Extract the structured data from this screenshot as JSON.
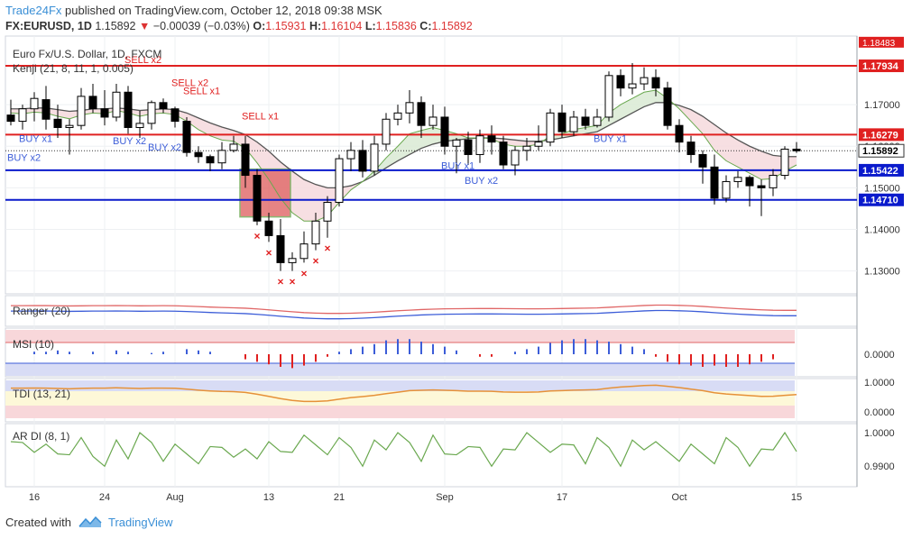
{
  "header": {
    "brand": "Trade24Fx",
    "published": "published on TradingView.com, October 12, 2018 09:38 MSK",
    "symbol": "FX:EURUSD, 1D",
    "last": "1.15892",
    "change": "−0.00039 (−0.03%)",
    "o_label": "O:",
    "o": "1.15931",
    "h_label": "H:",
    "h": "1.16104",
    "l_label": "L:",
    "l": "1.15836",
    "c_label": "C:",
    "c": "1.15892"
  },
  "footer": {
    "created": "Created with",
    "tv": "TradingView"
  },
  "colors": {
    "bull": "#ffffff",
    "bear": "#000000",
    "red_line": "#e02020",
    "blue_line": "#0a1acc",
    "accent": "#3a8fd6"
  },
  "chart_data": {
    "type": "candlestick",
    "title": "Euro Fx/U.S. Dollar, 1D, FXCM",
    "indicator_label": "Kenji (21, 8, 11, 1, 0.005)",
    "ylim": [
      1.1245,
      1.1865
    ],
    "y_ticks": [
      1.13,
      1.14,
      1.15,
      1.16,
      1.17
    ],
    "y_tick_labels": [
      "1.13000",
      "1.14000",
      "1.15000",
      "1.16000",
      "1.17000"
    ],
    "x_ticks": [
      {
        "label": "16",
        "idx": 2
      },
      {
        "label": "24",
        "idx": 8
      },
      {
        "label": "Aug",
        "idx": 14
      },
      {
        "label": "13",
        "idx": 22
      },
      {
        "label": "21",
        "idx": 28
      },
      {
        "label": "Sep",
        "idx": 37
      },
      {
        "label": "17",
        "idx": 47
      },
      {
        "label": "Oct",
        "idx": 57
      },
      {
        "label": "15",
        "idx": 67
      }
    ],
    "candles": [
      {
        "o": 1.1675,
        "h": 1.1712,
        "l": 1.165,
        "c": 1.166
      },
      {
        "o": 1.166,
        "h": 1.17,
        "l": 1.164,
        "c": 1.169
      },
      {
        "o": 1.169,
        "h": 1.173,
        "l": 1.166,
        "c": 1.1715
      },
      {
        "o": 1.1712,
        "h": 1.1745,
        "l": 1.164,
        "c": 1.1665
      },
      {
        "o": 1.1665,
        "h": 1.17,
        "l": 1.162,
        "c": 1.1645
      },
      {
        "o": 1.1645,
        "h": 1.1665,
        "l": 1.158,
        "c": 1.165
      },
      {
        "o": 1.165,
        "h": 1.174,
        "l": 1.164,
        "c": 1.172
      },
      {
        "o": 1.172,
        "h": 1.175,
        "l": 1.168,
        "c": 1.169
      },
      {
        "o": 1.169,
        "h": 1.1735,
        "l": 1.165,
        "c": 1.167
      },
      {
        "o": 1.167,
        "h": 1.175,
        "l": 1.166,
        "c": 1.173
      },
      {
        "o": 1.173,
        "h": 1.1745,
        "l": 1.163,
        "c": 1.1645
      },
      {
        "o": 1.1645,
        "h": 1.1685,
        "l": 1.162,
        "c": 1.1655
      },
      {
        "o": 1.1655,
        "h": 1.171,
        "l": 1.164,
        "c": 1.1705
      },
      {
        "o": 1.1705,
        "h": 1.1715,
        "l": 1.168,
        "c": 1.169
      },
      {
        "o": 1.169,
        "h": 1.1695,
        "l": 1.1645,
        "c": 1.166
      },
      {
        "o": 1.166,
        "h": 1.167,
        "l": 1.1575,
        "c": 1.1585
      },
      {
        "o": 1.1585,
        "h": 1.16,
        "l": 1.156,
        "c": 1.1575
      },
      {
        "o": 1.1575,
        "h": 1.158,
        "l": 1.154,
        "c": 1.156
      },
      {
        "o": 1.156,
        "h": 1.161,
        "l": 1.1545,
        "c": 1.159
      },
      {
        "o": 1.159,
        "h": 1.1625,
        "l": 1.1585,
        "c": 1.1605
      },
      {
        "o": 1.1605,
        "h": 1.1625,
        "l": 1.15,
        "c": 1.153
      },
      {
        "o": 1.153,
        "h": 1.1545,
        "l": 1.141,
        "c": 1.142
      },
      {
        "o": 1.142,
        "h": 1.144,
        "l": 1.137,
        "c": 1.1385
      },
      {
        "o": 1.1385,
        "h": 1.1425,
        "l": 1.13,
        "c": 1.132
      },
      {
        "o": 1.132,
        "h": 1.1345,
        "l": 1.13,
        "c": 1.133
      },
      {
        "o": 1.133,
        "h": 1.1395,
        "l": 1.132,
        "c": 1.1365
      },
      {
        "o": 1.1365,
        "h": 1.144,
        "l": 1.135,
        "c": 1.142
      },
      {
        "o": 1.142,
        "h": 1.148,
        "l": 1.138,
        "c": 1.1465
      },
      {
        "o": 1.1465,
        "h": 1.158,
        "l": 1.1455,
        "c": 1.157
      },
      {
        "o": 1.157,
        "h": 1.161,
        "l": 1.154,
        "c": 1.159
      },
      {
        "o": 1.159,
        "h": 1.1615,
        "l": 1.1525,
        "c": 1.154
      },
      {
        "o": 1.154,
        "h": 1.1625,
        "l": 1.153,
        "c": 1.1605
      },
      {
        "o": 1.1605,
        "h": 1.168,
        "l": 1.159,
        "c": 1.1665
      },
      {
        "o": 1.1665,
        "h": 1.17,
        "l": 1.165,
        "c": 1.168
      },
      {
        "o": 1.168,
        "h": 1.1735,
        "l": 1.1655,
        "c": 1.1705
      },
      {
        "o": 1.1705,
        "h": 1.172,
        "l": 1.162,
        "c": 1.165
      },
      {
        "o": 1.165,
        "h": 1.17,
        "l": 1.164,
        "c": 1.167
      },
      {
        "o": 1.167,
        "h": 1.1695,
        "l": 1.158,
        "c": 1.16
      },
      {
        "o": 1.16,
        "h": 1.162,
        "l": 1.1535,
        "c": 1.1615
      },
      {
        "o": 1.1615,
        "h": 1.1635,
        "l": 1.1555,
        "c": 1.158
      },
      {
        "o": 1.158,
        "h": 1.164,
        "l": 1.156,
        "c": 1.1625
      },
      {
        "o": 1.1625,
        "h": 1.165,
        "l": 1.158,
        "c": 1.161
      },
      {
        "o": 1.161,
        "h": 1.1625,
        "l": 1.1545,
        "c": 1.1555
      },
      {
        "o": 1.1555,
        "h": 1.16,
        "l": 1.153,
        "c": 1.159
      },
      {
        "o": 1.159,
        "h": 1.162,
        "l": 1.1565,
        "c": 1.16
      },
      {
        "o": 1.16,
        "h": 1.165,
        "l": 1.159,
        "c": 1.161
      },
      {
        "o": 1.161,
        "h": 1.169,
        "l": 1.16,
        "c": 1.168
      },
      {
        "o": 1.168,
        "h": 1.17,
        "l": 1.162,
        "c": 1.1635
      },
      {
        "o": 1.1635,
        "h": 1.1685,
        "l": 1.1625,
        "c": 1.167
      },
      {
        "o": 1.167,
        "h": 1.169,
        "l": 1.164,
        "c": 1.165
      },
      {
        "o": 1.165,
        "h": 1.169,
        "l": 1.1645,
        "c": 1.167
      },
      {
        "o": 1.167,
        "h": 1.178,
        "l": 1.166,
        "c": 1.177
      },
      {
        "o": 1.177,
        "h": 1.1785,
        "l": 1.172,
        "c": 1.174
      },
      {
        "o": 1.174,
        "h": 1.18,
        "l": 1.1725,
        "c": 1.175
      },
      {
        "o": 1.175,
        "h": 1.179,
        "l": 1.1735,
        "c": 1.1765
      },
      {
        "o": 1.1765,
        "h": 1.1785,
        "l": 1.172,
        "c": 1.174
      },
      {
        "o": 1.174,
        "h": 1.1755,
        "l": 1.164,
        "c": 1.165
      },
      {
        "o": 1.165,
        "h": 1.1665,
        "l": 1.1585,
        "c": 1.161
      },
      {
        "o": 1.161,
        "h": 1.1625,
        "l": 1.156,
        "c": 1.158
      },
      {
        "o": 1.158,
        "h": 1.159,
        "l": 1.151,
        "c": 1.155
      },
      {
        "o": 1.155,
        "h": 1.158,
        "l": 1.146,
        "c": 1.1475
      },
      {
        "o": 1.1475,
        "h": 1.153,
        "l": 1.1465,
        "c": 1.1515
      },
      {
        "o": 1.1515,
        "h": 1.154,
        "l": 1.15,
        "c": 1.1525
      },
      {
        "o": 1.1525,
        "h": 1.153,
        "l": 1.1455,
        "c": 1.1505
      },
      {
        "o": 1.1505,
        "h": 1.152,
        "l": 1.1432,
        "c": 1.15
      },
      {
        "o": 1.15,
        "h": 1.1545,
        "l": 1.148,
        "c": 1.153
      },
      {
        "o": 1.153,
        "h": 1.16,
        "l": 1.152,
        "c": 1.1593
      },
      {
        "o": 1.1593,
        "h": 1.161,
        "l": 1.1584,
        "c": 1.1589
      }
    ],
    "horizontal_lines": [
      {
        "value": 1.17934,
        "label": "1.17934",
        "color": "red"
      },
      {
        "value": 1.16279,
        "label": "1.16279",
        "color": "red"
      },
      {
        "value": 1.15422,
        "label": "1.15422",
        "color": "blue"
      },
      {
        "value": 1.1471,
        "label": "1.14710",
        "color": "blue"
      }
    ],
    "last_price": {
      "value": 1.15892,
      "label": "1.15892"
    },
    "top_label": {
      "value": 1.1848,
      "label": "1.18483"
    },
    "signals": [
      {
        "text": "SELL x2",
        "idx": 10,
        "side": "sell",
        "value": 1.18
      },
      {
        "text": "SELL x2",
        "idx": 14,
        "side": "sell",
        "value": 1.1745
      },
      {
        "text": "SELL x1",
        "idx": 15,
        "side": "sell",
        "value": 1.1725
      },
      {
        "text": "SELL x1",
        "idx": 20,
        "side": "sell",
        "value": 1.1665
      },
      {
        "text": "BUY x1",
        "idx": 1,
        "side": "buy",
        "value": 1.161
      },
      {
        "text": "BUY x2",
        "idx": 0,
        "side": "buy",
        "value": 1.1565
      },
      {
        "text": "BUY x2",
        "idx": 9,
        "side": "buy",
        "value": 1.1605
      },
      {
        "text": "BUY x2",
        "idx": 12,
        "side": "buy",
        "value": 1.159
      },
      {
        "text": "BUY x1",
        "idx": 37,
        "side": "buy",
        "value": 1.1545
      },
      {
        "text": "BUY x2",
        "idx": 39,
        "side": "buy",
        "value": 1.151
      },
      {
        "text": "BUY x1",
        "idx": 50,
        "side": "buy",
        "value": 1.161
      }
    ],
    "x_markers": [
      21,
      22,
      23,
      24,
      25,
      26,
      27
    ],
    "fast_line": [
      1.168,
      1.1678,
      1.1682,
      1.168,
      1.1672,
      1.1666,
      1.1675,
      1.168,
      1.1678,
      1.1686,
      1.168,
      1.1672,
      1.1678,
      1.168,
      1.1676,
      1.166,
      1.164,
      1.1625,
      1.1615,
      1.1612,
      1.1595,
      1.156,
      1.152,
      1.1475,
      1.144,
      1.142,
      1.142,
      1.1432,
      1.1465,
      1.1495,
      1.1515,
      1.154,
      1.1572,
      1.16,
      1.163,
      1.1638,
      1.1645,
      1.1638,
      1.163,
      1.162,
      1.162,
      1.1618,
      1.1605,
      1.16,
      1.16,
      1.1605,
      1.1625,
      1.163,
      1.164,
      1.1645,
      1.165,
      1.168,
      1.17,
      1.1715,
      1.173,
      1.1735,
      1.1715,
      1.169,
      1.166,
      1.163,
      1.159,
      1.1565,
      1.155,
      1.1535,
      1.152,
      1.1522,
      1.154,
      1.1555
    ],
    "slow_line": [
      1.169,
      1.169,
      1.1692,
      1.1692,
      1.1688,
      1.1684,
      1.1686,
      1.169,
      1.169,
      1.1692,
      1.169,
      1.1686,
      1.1688,
      1.169,
      1.1688,
      1.168,
      1.1668,
      1.1656,
      1.1646,
      1.1638,
      1.1628,
      1.161,
      1.1588,
      1.1562,
      1.154,
      1.152,
      1.1508,
      1.15,
      1.15,
      1.1505,
      1.1515,
      1.153,
      1.1548,
      1.1565,
      1.158,
      1.1595,
      1.1605,
      1.1612,
      1.1615,
      1.1618,
      1.162,
      1.162,
      1.1618,
      1.1615,
      1.1612,
      1.1612,
      1.1615,
      1.162,
      1.1625,
      1.163,
      1.1635,
      1.165,
      1.1665,
      1.168,
      1.1695,
      1.1705,
      1.1705,
      1.1698,
      1.1688,
      1.1672,
      1.1652,
      1.1632,
      1.1615,
      1.16,
      1.1588,
      1.1578,
      1.1575,
      1.1575
    ],
    "panels": [
      {
        "label": "Ranger (20)"
      },
      {
        "label": "MSI (10)",
        "y_labels": [
          "0.0000"
        ],
        "hist": [
          0,
          0,
          0.1,
          0.1,
          0.15,
          0.1,
          0,
          0.1,
          0,
          0.15,
          0.1,
          0,
          0.05,
          0.1,
          0,
          0.2,
          0.15,
          0.1,
          0,
          0,
          -0.2,
          -0.3,
          -0.4,
          -0.5,
          -0.55,
          -0.45,
          -0.3,
          -0.1,
          0.1,
          0.2,
          0.3,
          0.4,
          0.55,
          0.6,
          0.6,
          0.5,
          0.4,
          0.3,
          0.15,
          0,
          -0.1,
          -0.1,
          0,
          0.1,
          0.2,
          0.3,
          0.45,
          0.55,
          0.6,
          0.6,
          0.55,
          0.5,
          0.4,
          0.3,
          0.2,
          -0.1,
          -0.3,
          -0.4,
          -0.45,
          -0.5,
          -0.45,
          -0.5,
          -0.5,
          -0.4,
          -0.3,
          -0.2,
          0,
          0
        ]
      },
      {
        "label": "TDI (13, 21)",
        "y_labels": [
          "1.0000",
          "0.0000"
        ]
      },
      {
        "label": "AR DI (8, 1)",
        "y_labels": [
          "1.0000",
          "0.9900"
        ]
      }
    ]
  }
}
